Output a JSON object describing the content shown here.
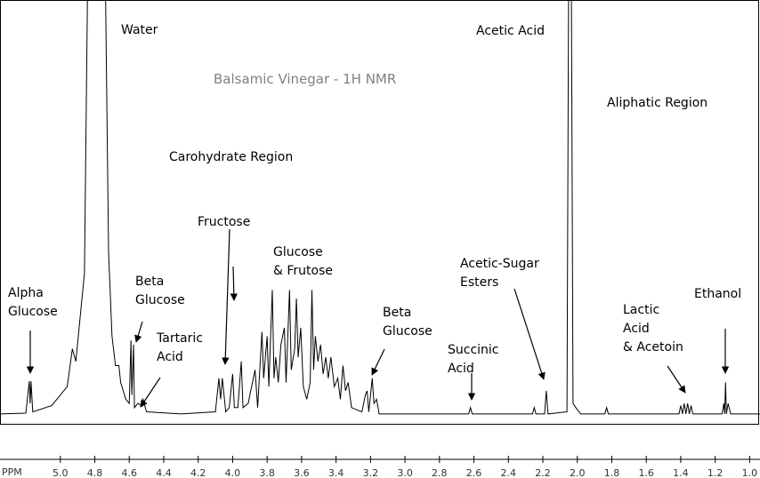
{
  "chart_data": {
    "type": "line",
    "title": "Balsamic Vinegar - 1H NMR",
    "x_label": "PPM",
    "annotations": [
      [
        "Water"
      ],
      [
        "Acetic Acid"
      ],
      [
        "Aliphatic Region"
      ],
      [
        "Carohydrate Region"
      ],
      [
        "Fructose"
      ],
      [
        "Glucose",
        "& Frutose"
      ],
      [
        "Alpha",
        "Glucose"
      ],
      [
        "Beta",
        "Glucose"
      ],
      [
        "Tartaric",
        "Acid"
      ],
      [
        "Beta",
        "Glucose"
      ],
      [
        "Succinic",
        "Acid"
      ],
      [
        "Acetic-Sugar",
        "Esters"
      ],
      [
        "Lactic",
        "Acid",
        "& Acetoin"
      ],
      [
        "Ethanol"
      ]
    ],
    "xlim": [
      5.35,
      0.94
    ],
    "ylim": [
      0,
      100
    ],
    "xticks": [
      {
        "value": 5,
        "label": "5.0"
      },
      4.8,
      4.6,
      4.4,
      4.2,
      {
        "value": 4,
        "label": "4.0"
      },
      3.8,
      3.6,
      3.4,
      3.2,
      {
        "value": 3,
        "label": "3.0"
      },
      2.8,
      2.6,
      2.4,
      2.2,
      {
        "value": 2,
        "label": "2.0"
      },
      1.8,
      1.6,
      1.4,
      1.2,
      {
        "value": 1,
        "label": "1.0"
      }
    ],
    "color": "#000000",
    "x": [
      5.35,
      5.2,
      5.18,
      5.175,
      5.17,
      5.16,
      5.05,
      4.96,
      4.93,
      4.91,
      4.86,
      4.84,
      4.74,
      4.72,
      4.7,
      4.68,
      4.66,
      4.65,
      4.62,
      4.6,
      4.59,
      4.585,
      4.575,
      4.57,
      4.55,
      4.53,
      4.52,
      4.5,
      4.3,
      4.1,
      4.08,
      4.07,
      4.06,
      4.04,
      4.02,
      4.0,
      3.99,
      3.97,
      3.95,
      3.94,
      3.91,
      3.87,
      3.855,
      3.83,
      3.82,
      3.8,
      3.79,
      3.77,
      3.76,
      3.75,
      3.735,
      3.72,
      3.7,
      3.69,
      3.67,
      3.66,
      3.64,
      3.63,
      3.62,
      3.605,
      3.59,
      3.57,
      3.55,
      3.54,
      3.53,
      3.52,
      3.505,
      3.49,
      3.475,
      3.46,
      3.445,
      3.43,
      3.41,
      3.39,
      3.375,
      3.36,
      3.345,
      3.33,
      3.31,
      3.25,
      3.23,
      3.22,
      3.21,
      3.19,
      3.18,
      3.165,
      3.15,
      2.8,
      2.63,
      2.62,
      2.61,
      2.26,
      2.25,
      2.24,
      2.19,
      2.18,
      2.17,
      2.06,
      2.05,
      2.035,
      2.025,
      2.0,
      1.98,
      1.84,
      1.83,
      1.82,
      1.41,
      1.4,
      1.39,
      1.38,
      1.37,
      1.36,
      1.35,
      1.34,
      1.33,
      1.16,
      1.15,
      1.145,
      1.14,
      1.135,
      1.125,
      1.11,
      0.94
    ],
    "values": [
      1.5,
      1.7,
      9.3,
      4,
      9.3,
      2,
      3.5,
      8,
      17,
      14,
      35,
      110,
      110,
      40,
      20,
      13,
      13,
      9,
      5,
      4,
      19,
      6,
      18,
      3,
      4,
      3.5,
      5,
      2,
      1.5,
      2,
      10,
      5,
      10,
      2,
      3,
      11,
      3,
      3,
      14,
      3,
      4,
      12,
      3,
      21,
      10,
      20,
      8,
      31,
      10,
      15,
      9,
      18,
      22,
      9,
      31,
      12,
      17,
      29,
      15,
      22,
      8,
      5,
      9,
      31,
      12,
      20,
      14,
      18,
      11,
      15,
      10,
      15,
      8,
      10,
      5,
      13,
      7,
      9,
      3,
      2,
      6,
      7,
      2,
      10,
      4,
      5,
      1.5,
      1.5,
      1.5,
      3,
      1.5,
      1.5,
      3,
      1.5,
      1.5,
      7,
      1.5,
      2,
      110,
      110,
      4,
      2.5,
      1.5,
      1.5,
      3,
      1.5,
      1.5,
      3.5,
      1.5,
      4,
      1.5,
      4,
      1.5,
      3.5,
      1.5,
      1.5,
      4,
      1.5,
      9,
      1.5,
      4,
      1.5,
      1.5
    ]
  }
}
